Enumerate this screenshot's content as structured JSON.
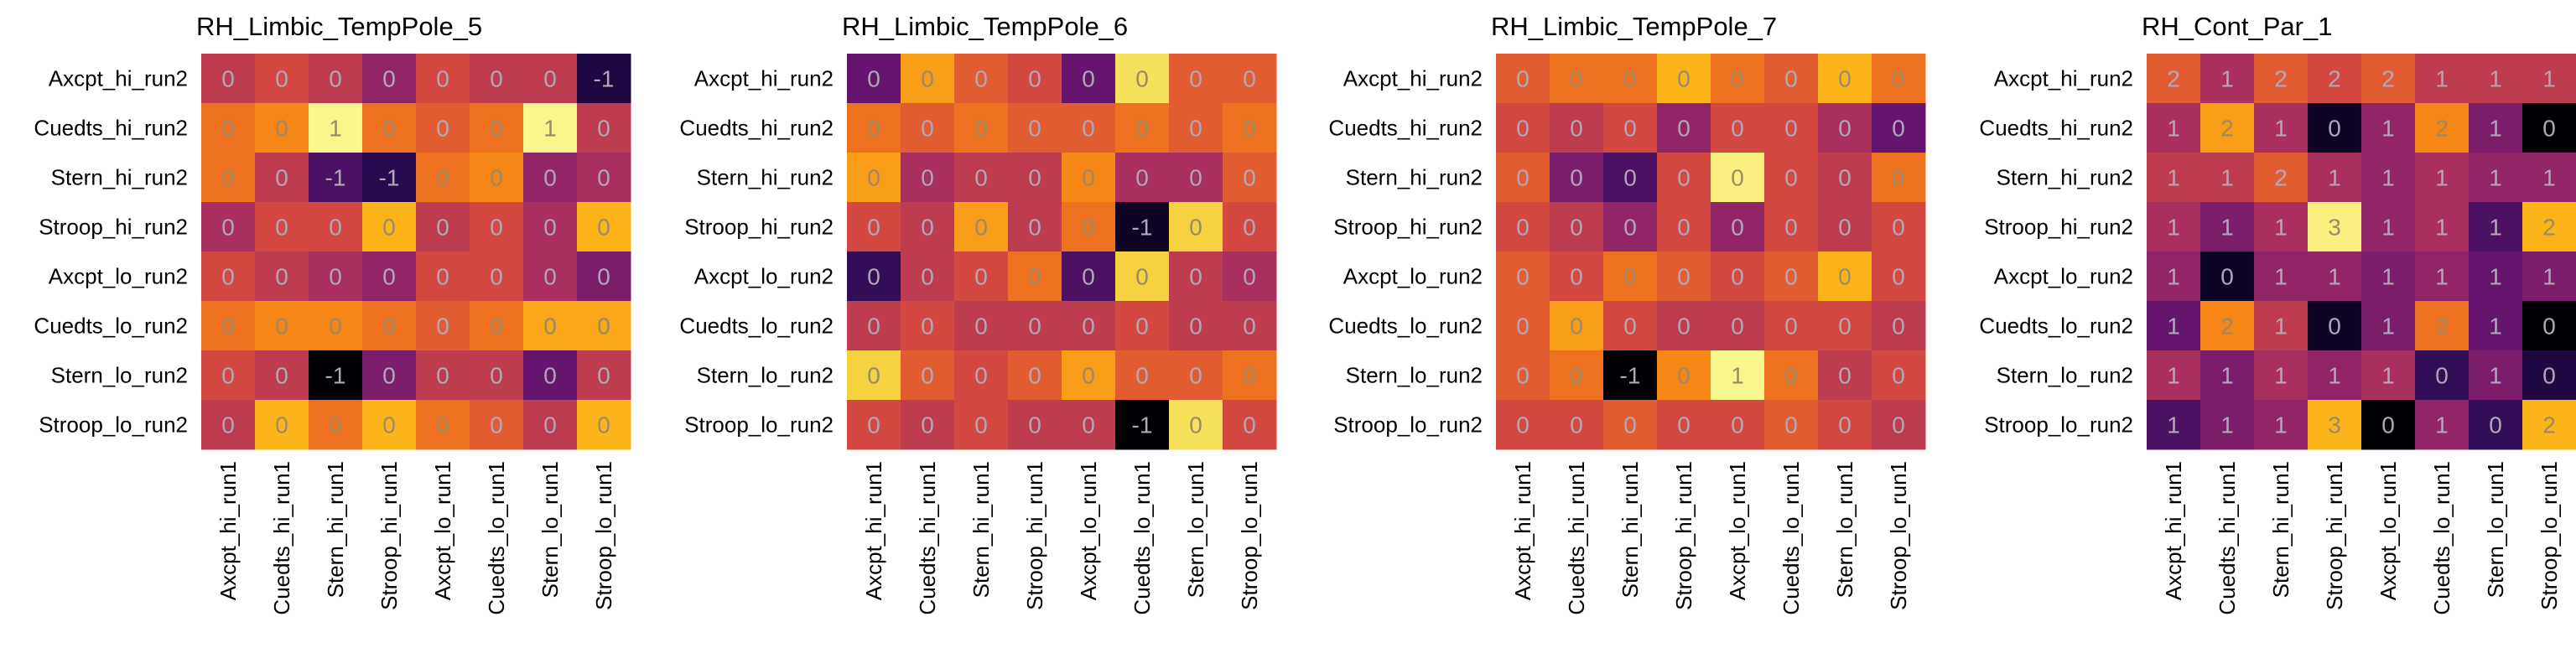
{
  "rows": [
    "Axcpt_hi_run2",
    "Cuedts_hi_run2",
    "Stern_hi_run2",
    "Stroop_hi_run2",
    "Axcpt_lo_run2",
    "Cuedts_lo_run2",
    "Stern_lo_run2",
    "Stroop_lo_run2"
  ],
  "cols": [
    "Axcpt_hi_run1",
    "Cuedts_hi_run1",
    "Stern_hi_run1",
    "Stroop_hi_run1",
    "Axcpt_lo_run1",
    "Cuedts_lo_run1",
    "Stern_lo_run1",
    "Stroop_lo_run1"
  ],
  "chart_data": [
    {
      "type": "heatmap",
      "title": "RH_Limbic_TempPole_5",
      "labels": [
        [
          0,
          0,
          0,
          0,
          0,
          0,
          0,
          -1
        ],
        [
          0,
          0,
          1,
          0,
          0,
          0,
          1,
          0
        ],
        [
          0,
          0,
          -1,
          -1,
          0,
          0,
          0,
          0
        ],
        [
          0,
          0,
          0,
          0,
          0,
          0,
          0,
          0
        ],
        [
          0,
          0,
          0,
          0,
          0,
          0,
          0,
          0
        ],
        [
          0,
          0,
          0,
          0,
          0,
          0,
          0,
          0
        ],
        [
          0,
          0,
          -1,
          0,
          0,
          0,
          0,
          0
        ],
        [
          0,
          0,
          0,
          0,
          0,
          0,
          0,
          0
        ]
      ],
      "values": [
        [
          0.45,
          0.5,
          0.45,
          0.35,
          0.5,
          0.45,
          0.45,
          0.1
        ],
        [
          0.6,
          0.65,
          0.97,
          0.6,
          0.55,
          0.6,
          0.97,
          0.45
        ],
        [
          0.6,
          0.45,
          0.2,
          0.12,
          0.6,
          0.65,
          0.35,
          0.4
        ],
        [
          0.4,
          0.5,
          0.5,
          0.75,
          0.45,
          0.5,
          0.4,
          0.75
        ],
        [
          0.5,
          0.45,
          0.4,
          0.35,
          0.5,
          0.5,
          0.4,
          0.3
        ],
        [
          0.6,
          0.65,
          0.65,
          0.6,
          0.55,
          0.6,
          0.72,
          0.72
        ],
        [
          0.5,
          0.45,
          0.0,
          0.3,
          0.45,
          0.45,
          0.25,
          0.45
        ],
        [
          0.45,
          0.75,
          0.6,
          0.75,
          0.6,
          0.55,
          0.45,
          0.75
        ]
      ]
    },
    {
      "type": "heatmap",
      "title": "RH_Limbic_TempPole_6",
      "labels": [
        [
          0,
          0,
          0,
          0,
          0,
          0,
          0,
          0
        ],
        [
          0,
          0,
          0,
          0,
          0,
          0,
          0,
          0
        ],
        [
          0,
          0,
          0,
          0,
          0,
          0,
          0,
          0
        ],
        [
          0,
          0,
          0,
          0,
          0,
          -1,
          0,
          0
        ],
        [
          0,
          0,
          0,
          0,
          0,
          0,
          0,
          0
        ],
        [
          0,
          0,
          0,
          0,
          0,
          0,
          0,
          0
        ],
        [
          0,
          0,
          0,
          0,
          0,
          0,
          0,
          0
        ],
        [
          0,
          0,
          0,
          0,
          0,
          -1,
          0,
          0
        ]
      ],
      "values": [
        [
          0.25,
          0.7,
          0.55,
          0.5,
          0.25,
          0.9,
          0.55,
          0.55
        ],
        [
          0.6,
          0.55,
          0.6,
          0.55,
          0.55,
          0.6,
          0.55,
          0.6
        ],
        [
          0.7,
          0.4,
          0.45,
          0.45,
          0.65,
          0.4,
          0.4,
          0.55
        ],
        [
          0.5,
          0.45,
          0.7,
          0.45,
          0.6,
          0.05,
          0.85,
          0.5
        ],
        [
          0.15,
          0.45,
          0.5,
          0.6,
          0.2,
          0.85,
          0.45,
          0.4
        ],
        [
          0.45,
          0.5,
          0.45,
          0.45,
          0.45,
          0.5,
          0.45,
          0.45
        ],
        [
          0.85,
          0.55,
          0.5,
          0.55,
          0.7,
          0.55,
          0.55,
          0.6
        ],
        [
          0.5,
          0.45,
          0.5,
          0.45,
          0.45,
          0.0,
          0.9,
          0.5
        ]
      ]
    },
    {
      "type": "heatmap",
      "title": "RH_Limbic_TempPole_7",
      "labels": [
        [
          0,
          0,
          0,
          0,
          0,
          0,
          0,
          0
        ],
        [
          0,
          0,
          0,
          0,
          0,
          0,
          0,
          0
        ],
        [
          0,
          0,
          0,
          0,
          0,
          0,
          0,
          0
        ],
        [
          0,
          0,
          0,
          0,
          0,
          0,
          0,
          0
        ],
        [
          0,
          0,
          0,
          0,
          0,
          0,
          0,
          0
        ],
        [
          0,
          0,
          0,
          0,
          0,
          0,
          0,
          0
        ],
        [
          0,
          0,
          -1,
          0,
          1,
          0,
          0,
          0
        ],
        [
          0,
          0,
          0,
          0,
          0,
          0,
          0,
          0
        ]
      ],
      "values": [
        [
          0.55,
          0.6,
          0.6,
          0.75,
          0.6,
          0.55,
          0.75,
          0.6
        ],
        [
          0.5,
          0.45,
          0.5,
          0.35,
          0.5,
          0.5,
          0.4,
          0.25
        ],
        [
          0.55,
          0.3,
          0.2,
          0.5,
          0.95,
          0.5,
          0.45,
          0.6
        ],
        [
          0.5,
          0.45,
          0.35,
          0.5,
          0.35,
          0.5,
          0.45,
          0.5
        ],
        [
          0.55,
          0.5,
          0.6,
          0.55,
          0.5,
          0.55,
          0.75,
          0.5
        ],
        [
          0.55,
          0.7,
          0.5,
          0.45,
          0.45,
          0.5,
          0.5,
          0.45
        ],
        [
          0.55,
          0.6,
          0.0,
          0.65,
          0.97,
          0.6,
          0.45,
          0.5
        ],
        [
          0.5,
          0.5,
          0.55,
          0.5,
          0.5,
          0.55,
          0.5,
          0.45
        ]
      ]
    },
    {
      "type": "heatmap",
      "title": "RH_Cont_Par_1",
      "labels": [
        [
          2,
          1,
          2,
          2,
          2,
          1,
          1,
          1
        ],
        [
          1,
          2,
          1,
          0,
          1,
          2,
          1,
          0
        ],
        [
          1,
          1,
          2,
          1,
          1,
          1,
          1,
          1
        ],
        [
          1,
          1,
          1,
          3,
          1,
          1,
          1,
          2
        ],
        [
          1,
          0,
          1,
          1,
          1,
          1,
          1,
          1
        ],
        [
          1,
          2,
          1,
          0,
          1,
          2,
          1,
          0
        ],
        [
          1,
          1,
          1,
          1,
          1,
          0,
          1,
          0
        ],
        [
          1,
          1,
          1,
          3,
          0,
          1,
          0,
          2
        ]
      ],
      "values": [
        [
          0.55,
          0.4,
          0.55,
          0.5,
          0.55,
          0.45,
          0.45,
          0.45
        ],
        [
          0.4,
          0.7,
          0.4,
          0.05,
          0.35,
          0.65,
          0.3,
          0.0
        ],
        [
          0.45,
          0.45,
          0.55,
          0.4,
          0.35,
          0.4,
          0.35,
          0.35
        ],
        [
          0.4,
          0.3,
          0.4,
          0.95,
          0.35,
          0.4,
          0.2,
          0.75
        ],
        [
          0.35,
          0.05,
          0.35,
          0.35,
          0.3,
          0.35,
          0.25,
          0.3
        ],
        [
          0.25,
          0.65,
          0.45,
          0.05,
          0.3,
          0.6,
          0.25,
          0.0
        ],
        [
          0.4,
          0.3,
          0.4,
          0.35,
          0.4,
          0.15,
          0.3,
          0.1
        ],
        [
          0.2,
          0.3,
          0.35,
          0.75,
          0.0,
          0.35,
          0.15,
          0.75
        ]
      ]
    }
  ]
}
